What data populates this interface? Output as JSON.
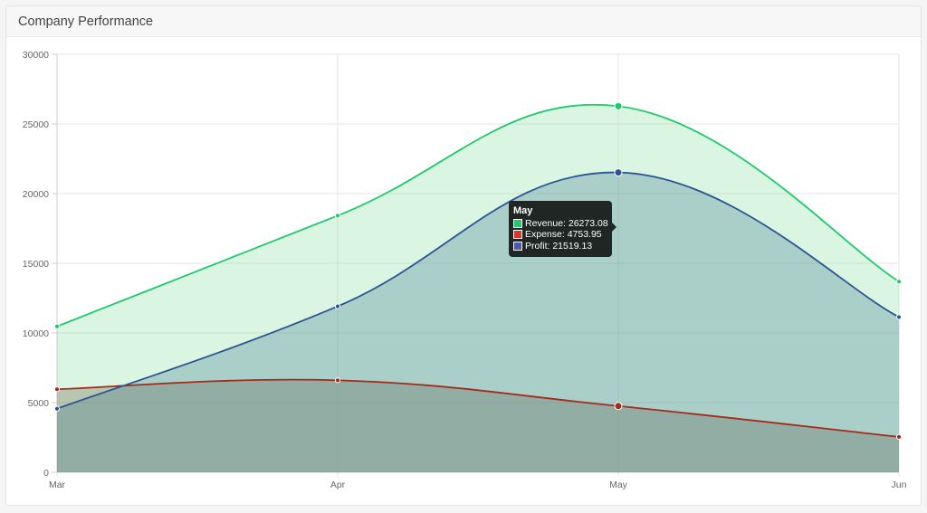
{
  "card": {
    "title": "Company Performance"
  },
  "chart_data": {
    "type": "area",
    "categories": [
      "Mar",
      "Apr",
      "May",
      "Jun"
    ],
    "ylim": [
      0,
      30000
    ],
    "yticks": [
      0,
      5000,
      10000,
      15000,
      20000,
      25000,
      30000
    ],
    "grid": true,
    "series": [
      {
        "name": "Revenue",
        "values": [
          10470,
          18420,
          26273.08,
          13690
        ],
        "color": "#1fc96b",
        "fill": "rgba(123,220,150,0.28)"
      },
      {
        "name": "Expense",
        "values": [
          5960,
          6600,
          4753.95,
          2540
        ],
        "color": "#a52a1c",
        "fill": "rgba(120,110,80,0.35)"
      },
      {
        "name": "Profit",
        "values": [
          4560,
          11910,
          21519.13,
          11140
        ],
        "color": "#2a5592",
        "fill": "rgba(60,120,140,0.30)"
      }
    ]
  },
  "tooltip": {
    "title": "May",
    "items": [
      {
        "label": "Revenue: 26273.08",
        "color": "#1fc96b"
      },
      {
        "label": "Expense: 4753.95",
        "color": "#d33a2c"
      },
      {
        "label": "Profit: 21519.13",
        "color": "#5058a8"
      }
    ]
  }
}
